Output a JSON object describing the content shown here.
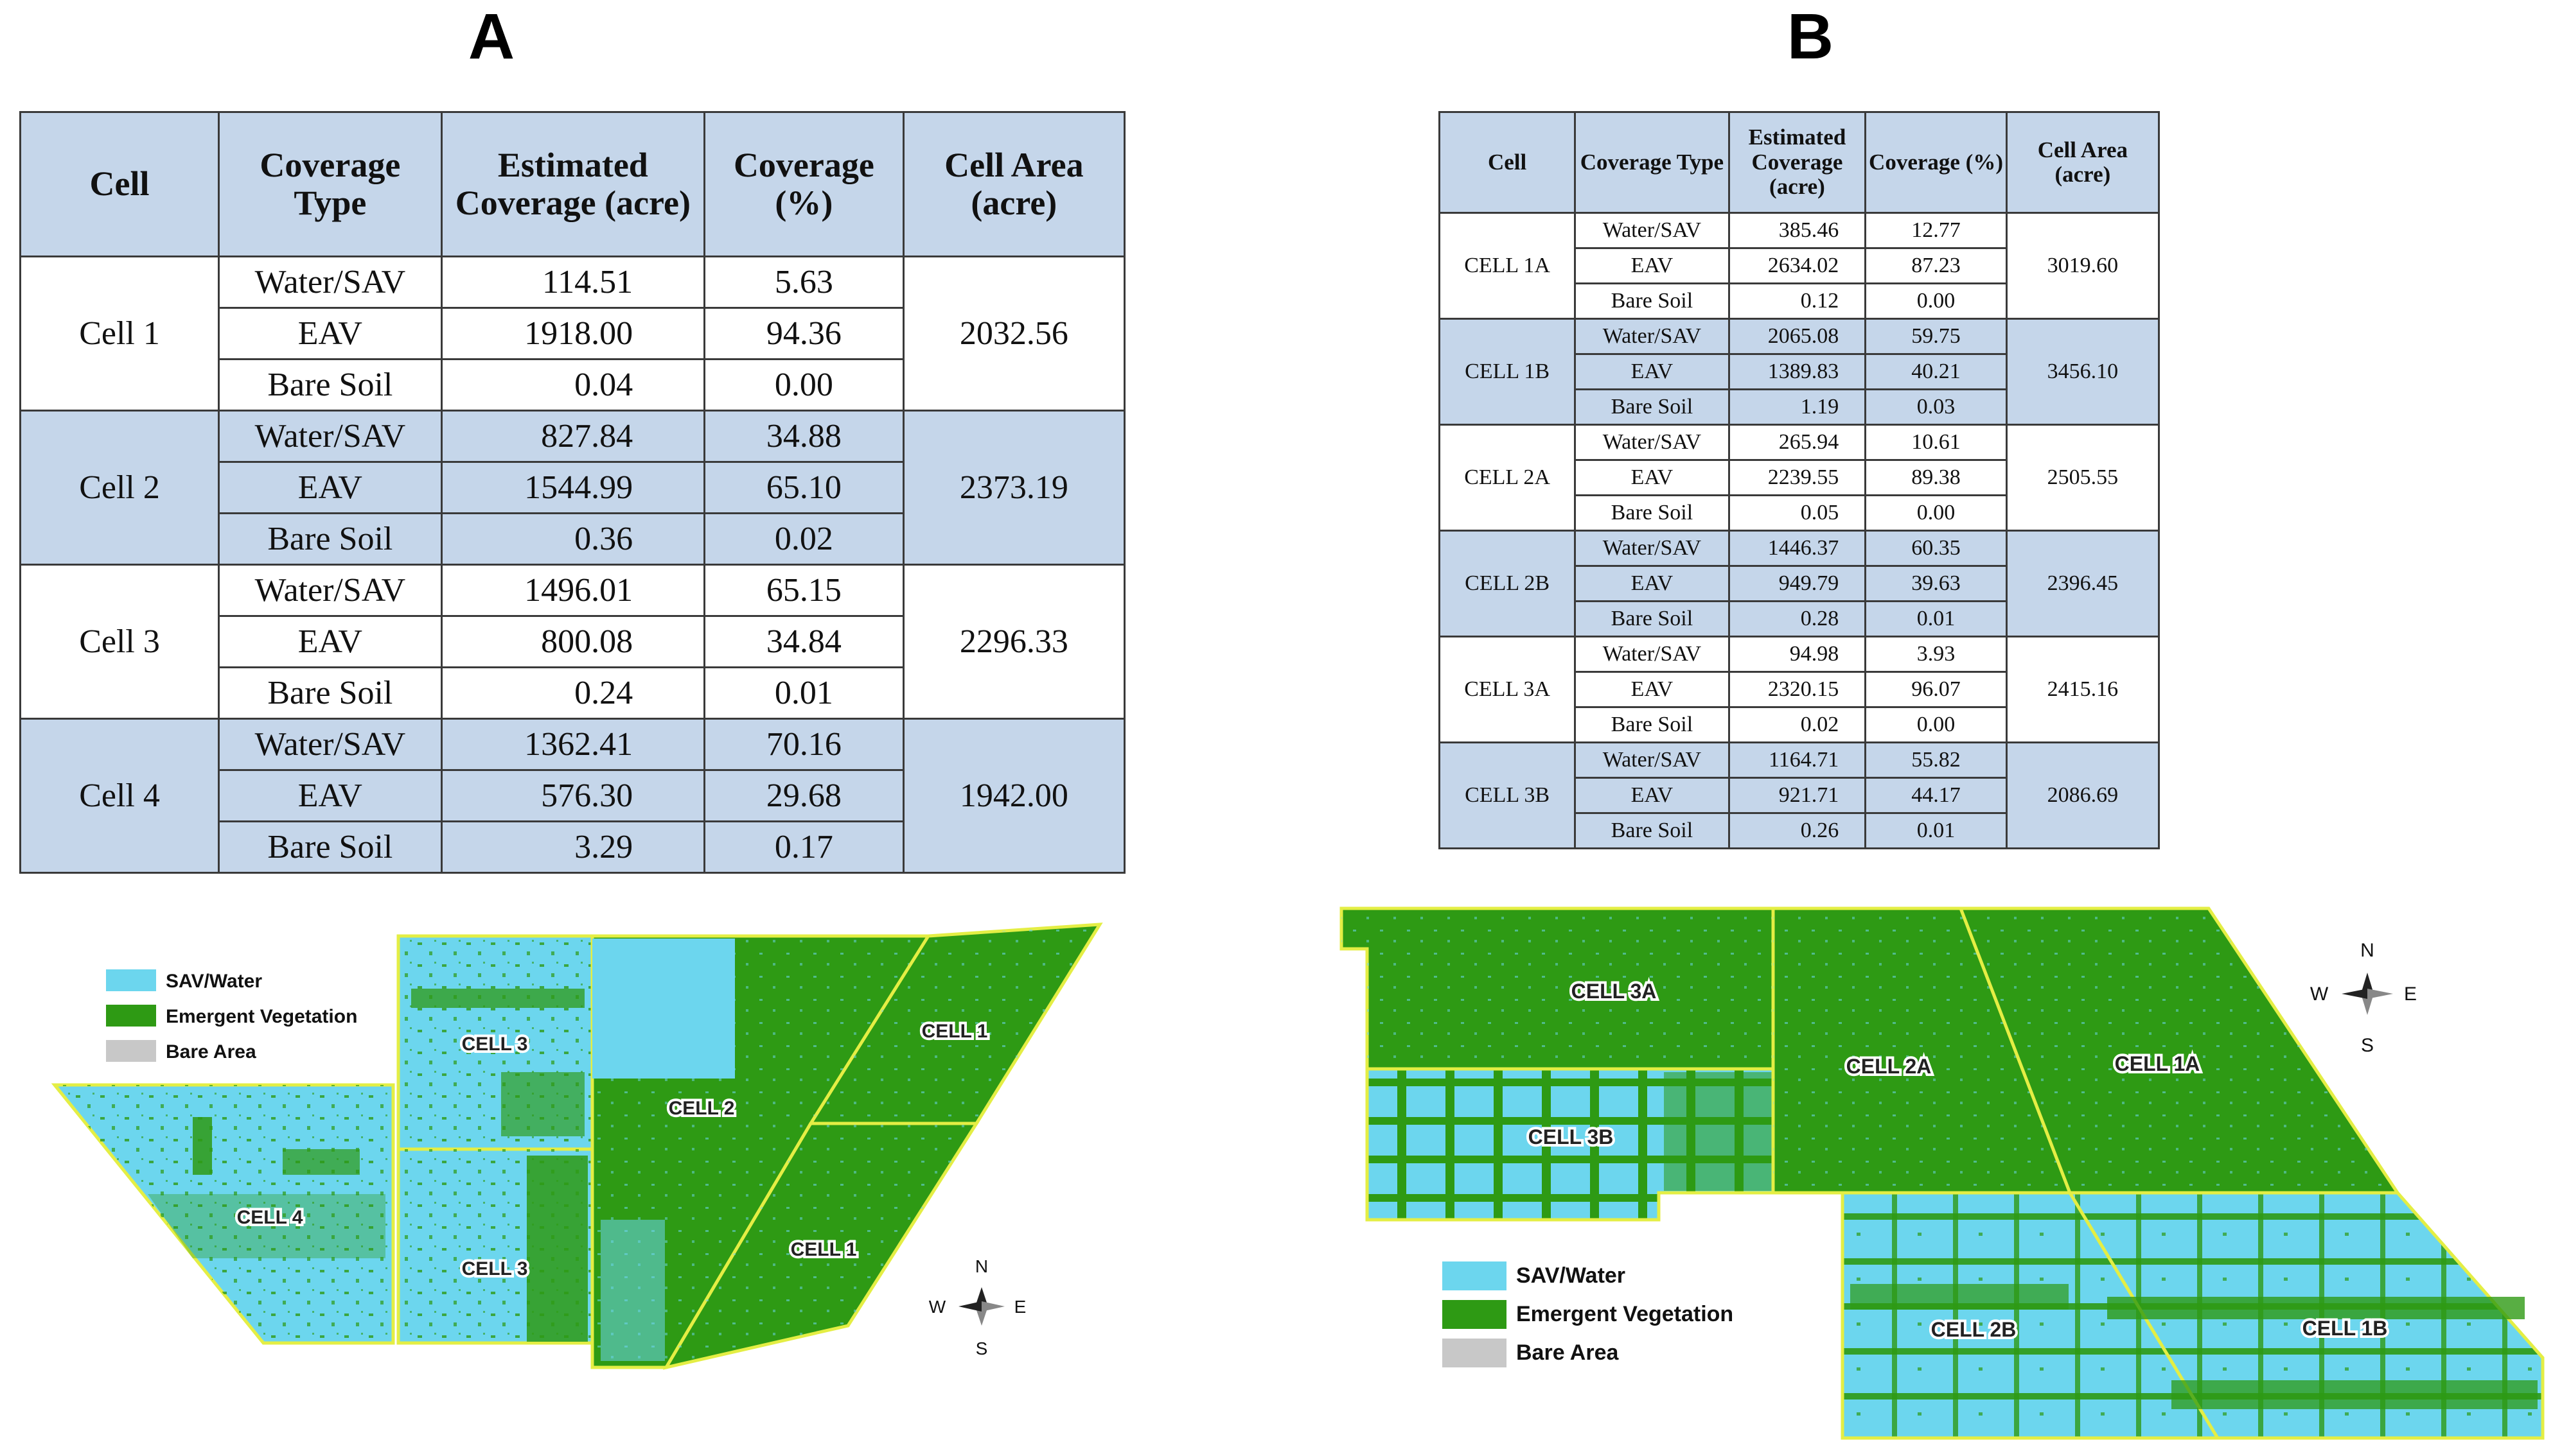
{
  "panel_a": {
    "letter": "A",
    "headers": {
      "cell": "Cell",
      "coverage_type": "Coverage Type",
      "estimated_coverage": "Estimated Coverage (acre)",
      "coverage_pct": "Coverage (%)",
      "cell_area": "Cell Area (acre)"
    },
    "groups": [
      {
        "cell": "Cell 1",
        "area": "2032.56",
        "rows": [
          {
            "type": "Water/SAV",
            "acre": "114.51",
            "pct": "5.63"
          },
          {
            "type": "EAV",
            "acre": "1918.00",
            "pct": "94.36"
          },
          {
            "type": "Bare Soil",
            "acre": "0.04",
            "pct": "0.00"
          }
        ]
      },
      {
        "cell": "Cell 2",
        "area": "2373.19",
        "rows": [
          {
            "type": "Water/SAV",
            "acre": "827.84",
            "pct": "34.88"
          },
          {
            "type": "EAV",
            "acre": "1544.99",
            "pct": "65.10"
          },
          {
            "type": "Bare Soil",
            "acre": "0.36",
            "pct": "0.02"
          }
        ]
      },
      {
        "cell": "Cell 3",
        "area": "2296.33",
        "rows": [
          {
            "type": "Water/SAV",
            "acre": "1496.01",
            "pct": "65.15"
          },
          {
            "type": "EAV",
            "acre": "800.08",
            "pct": "34.84"
          },
          {
            "type": "Bare Soil",
            "acre": "0.24",
            "pct": "0.01"
          }
        ]
      },
      {
        "cell": "Cell 4",
        "area": "1942.00",
        "rows": [
          {
            "type": "Water/SAV",
            "acre": "1362.41",
            "pct": "70.16"
          },
          {
            "type": "EAV",
            "acre": "576.30",
            "pct": "29.68"
          },
          {
            "type": "Bare Soil",
            "acre": "3.29",
            "pct": "0.17"
          }
        ]
      }
    ],
    "legend": [
      {
        "label": "SAV/Water",
        "color": "#6cd6ee"
      },
      {
        "label": "Emergent Vegetation",
        "color": "#2e9a14"
      },
      {
        "label": "Bare Area",
        "color": "#c8c8c8"
      }
    ],
    "map_labels": {
      "cell3_top": "CELL 3",
      "cell3_bottom": "CELL 3",
      "cell2": "CELL 2",
      "cell1_top": "CELL 1",
      "cell1_bottom": "CELL 1",
      "cell4": "CELL 4"
    },
    "compass": {
      "n": "N",
      "s": "S",
      "e": "E",
      "w": "W"
    }
  },
  "panel_b": {
    "letter": "B",
    "headers": {
      "cell": "Cell",
      "coverage_type": "Coverage Type",
      "estimated_coverage": "Estimated Coverage (acre)",
      "coverage_pct": "Coverage (%)",
      "cell_area": "Cell Area (acre)"
    },
    "groups": [
      {
        "cell": "CELL 1A",
        "area": "3019.60",
        "rows": [
          {
            "type": "Water/SAV",
            "acre": "385.46",
            "pct": "12.77"
          },
          {
            "type": "EAV",
            "acre": "2634.02",
            "pct": "87.23"
          },
          {
            "type": "Bare Soil",
            "acre": "0.12",
            "pct": "0.00"
          }
        ]
      },
      {
        "cell": "CELL 1B",
        "area": "3456.10",
        "rows": [
          {
            "type": "Water/SAV",
            "acre": "2065.08",
            "pct": "59.75"
          },
          {
            "type": "EAV",
            "acre": "1389.83",
            "pct": "40.21"
          },
          {
            "type": "Bare Soil",
            "acre": "1.19",
            "pct": "0.03"
          }
        ]
      },
      {
        "cell": "CELL 2A",
        "area": "2505.55",
        "rows": [
          {
            "type": "Water/SAV",
            "acre": "265.94",
            "pct": "10.61"
          },
          {
            "type": "EAV",
            "acre": "2239.55",
            "pct": "89.38"
          },
          {
            "type": "Bare Soil",
            "acre": "0.05",
            "pct": "0.00"
          }
        ]
      },
      {
        "cell": "CELL 2B",
        "area": "2396.45",
        "rows": [
          {
            "type": "Water/SAV",
            "acre": "1446.37",
            "pct": "60.35"
          },
          {
            "type": "EAV",
            "acre": "949.79",
            "pct": "39.63"
          },
          {
            "type": "Bare Soil",
            "acre": "0.28",
            "pct": "0.01"
          }
        ]
      },
      {
        "cell": "CELL 3A",
        "area": "2415.16",
        "rows": [
          {
            "type": "Water/SAV",
            "acre": "94.98",
            "pct": "3.93"
          },
          {
            "type": "EAV",
            "acre": "2320.15",
            "pct": "96.07"
          },
          {
            "type": "Bare Soil",
            "acre": "0.02",
            "pct": "0.00"
          }
        ]
      },
      {
        "cell": "CELL 3B",
        "area": "2086.69",
        "rows": [
          {
            "type": "Water/SAV",
            "acre": "1164.71",
            "pct": "55.82"
          },
          {
            "type": "EAV",
            "acre": "921.71",
            "pct": "44.17"
          },
          {
            "type": "Bare Soil",
            "acre": "0.26",
            "pct": "0.01"
          }
        ]
      }
    ],
    "legend": [
      {
        "label": "SAV/Water",
        "color": "#6cd6ee"
      },
      {
        "label": "Emergent Vegetation",
        "color": "#2e9a14"
      },
      {
        "label": "Bare Area",
        "color": "#c8c8c8"
      }
    ],
    "map_labels": {
      "cell3a": "CELL 3A",
      "cell3b": "CELL 3B",
      "cell2a": "CELL 2A",
      "cell1a": "CELL 1A",
      "cell2b": "CELL 2B",
      "cell1b": "CELL 1B"
    },
    "compass": {
      "n": "N",
      "s": "S",
      "e": "E",
      "w": "W"
    }
  }
}
